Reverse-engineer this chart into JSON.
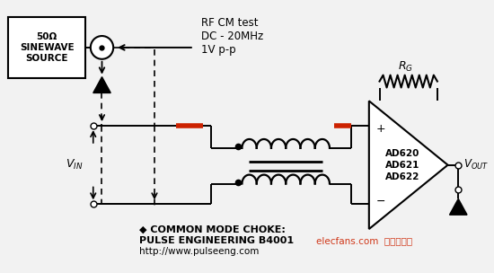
{
  "bg_color": "#f2f2f2",
  "source_box_text": "50Ω\nSINEWAVE\nSOURCE",
  "rf_text": "RF CM test\nDC - 20MHz\n1V p-p",
  "amp_label": "AD620\nAD621\nAD622",
  "rg_label": "R",
  "rg_sub": "G",
  "vout_label": "V",
  "vout_sub": "OUT",
  "vin_label": "V",
  "vin_sub": "IN",
  "bottom1": "◆ COMMON MODE CHOKE:",
  "bottom2": "PULSE ENGINEERING B4001",
  "bottom3": "http://www.pulseeng.com",
  "watermark": "elecfans.com  电子发烧友",
  "red_color": "#cc2200",
  "black": "#000000",
  "white": "#ffffff"
}
